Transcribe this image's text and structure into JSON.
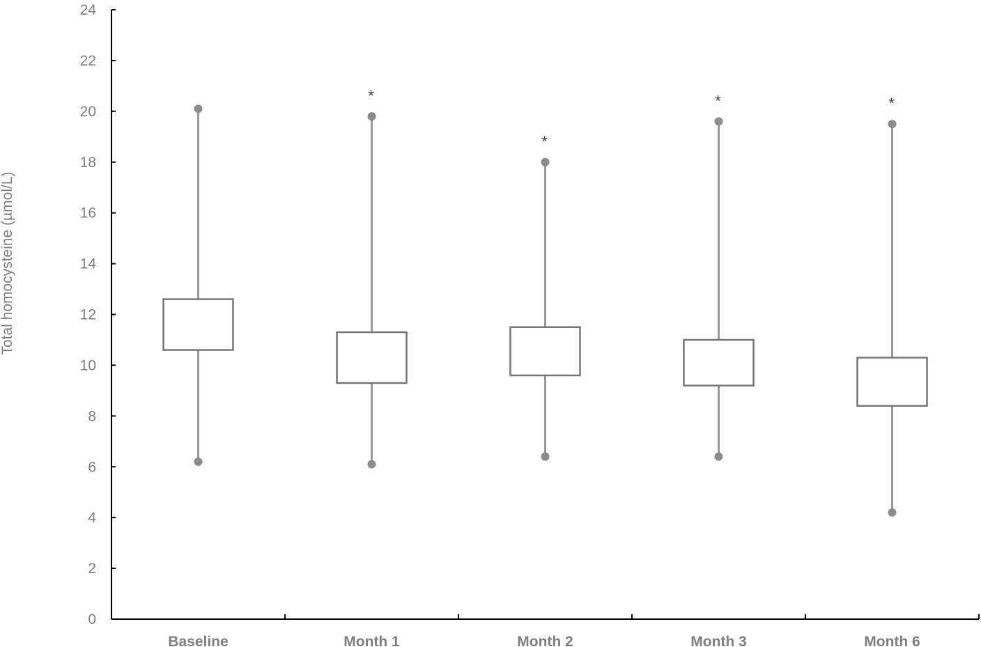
{
  "chart_data": {
    "type": "box",
    "ylabel": "Total homocysteine (µmol/L)",
    "xlabel": "",
    "ylim": [
      0,
      24
    ],
    "yticks": [
      0,
      2,
      4,
      6,
      8,
      10,
      12,
      14,
      16,
      18,
      20,
      22,
      24
    ],
    "categories": [
      "Baseline",
      "Month 1",
      "Month 2",
      "Month 3",
      "Month 6"
    ],
    "boxes": [
      {
        "category": "Baseline",
        "min": 6.2,
        "q1": 10.6,
        "q3": 12.6,
        "max": 20.1,
        "marker": ""
      },
      {
        "category": "Month 1",
        "min": 6.1,
        "q1": 9.3,
        "q3": 11.3,
        "max": 19.8,
        "marker": "*"
      },
      {
        "category": "Month 2",
        "min": 6.4,
        "q1": 9.6,
        "q3": 11.5,
        "max": 18.0,
        "marker": "*"
      },
      {
        "category": "Month 3",
        "min": 6.4,
        "q1": 9.2,
        "q3": 11.0,
        "max": 19.6,
        "marker": "*"
      },
      {
        "category": "Month 6",
        "min": 4.2,
        "q1": 8.4,
        "q3": 10.3,
        "max": 19.5,
        "marker": "*"
      }
    ],
    "grid": false,
    "colors": {
      "axis": "#000000",
      "box": "#767676",
      "whisker": "#999999",
      "point": "#8c8c8c",
      "text": "#7f7f7f",
      "marker": "#404040"
    }
  }
}
